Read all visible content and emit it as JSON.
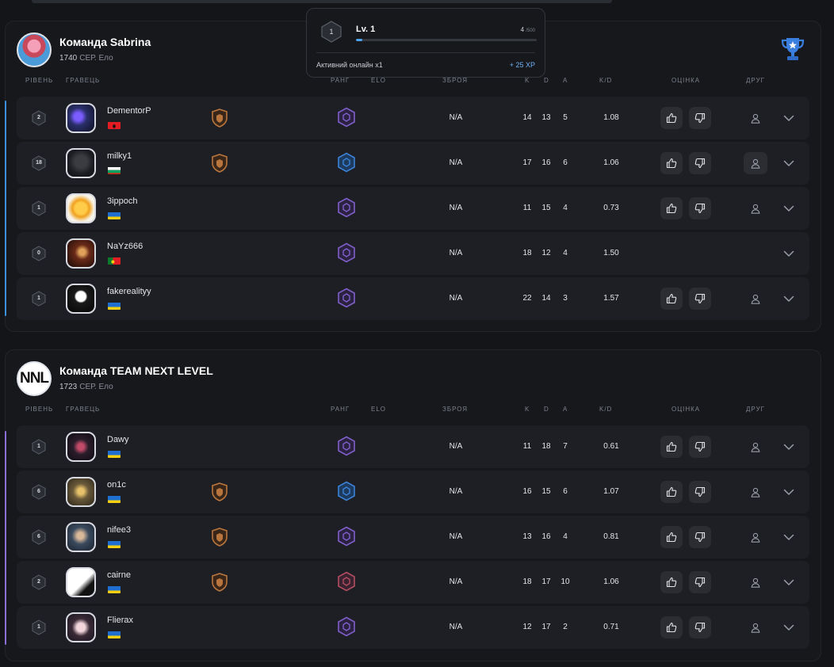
{
  "popup": {
    "level_badge": "1",
    "level_label": "Lv. 1",
    "xp_current": "4",
    "xp_max": "/500",
    "xp_progress": 0.01,
    "activity_label": "Активний онлайн x1",
    "reward_label": "+ 25 XP"
  },
  "columns": {
    "level": "РІВЕНЬ",
    "player": "ГРАВЕЦЬ",
    "rank": "РАНГ",
    "elo": "ELO",
    "weapon": "ЗБРОЯ",
    "k": "K",
    "d": "D",
    "a": "A",
    "kd": "K/D",
    "rating": "ОЦІНКА",
    "friend": "ДРУГ"
  },
  "teams": [
    {
      "name": "Команда Sabrina",
      "elo_value": "1740",
      "elo_label": "СЕР. Ело",
      "players": [
        {
          "level": "2",
          "nick": "DementorP",
          "weapon": "N/A",
          "k": "14",
          "d": "13",
          "a": "5",
          "kd": "1.08"
        },
        {
          "level": "18",
          "nick": "milky1",
          "weapon": "N/A",
          "k": "17",
          "d": "16",
          "a": "6",
          "kd": "1.06"
        },
        {
          "level": "1",
          "nick": "3ippoch",
          "weapon": "N/A",
          "k": "11",
          "d": "15",
          "a": "4",
          "kd": "0.73"
        },
        {
          "level": "0",
          "nick": "NaYz666",
          "weapon": "N/A",
          "k": "18",
          "d": "12",
          "a": "4",
          "kd": "1.50"
        },
        {
          "level": "1",
          "nick": "fakerealityy",
          "weapon": "N/A",
          "k": "22",
          "d": "14",
          "a": "3",
          "kd": "1.57"
        }
      ]
    },
    {
      "name": "Команда TEAM NEXT LEVEL",
      "elo_value": "1723",
      "elo_label": "СЕР. Ело",
      "players": [
        {
          "level": "1",
          "nick": "Dawy",
          "weapon": "N/A",
          "k": "11",
          "d": "18",
          "a": "7",
          "kd": "0.61"
        },
        {
          "level": "6",
          "nick": "on1c",
          "weapon": "N/A",
          "k": "16",
          "d": "15",
          "a": "6",
          "kd": "1.07"
        },
        {
          "level": "6",
          "nick": "nifee3",
          "weapon": "N/A",
          "k": "13",
          "d": "16",
          "a": "4",
          "kd": "0.81"
        },
        {
          "level": "2",
          "nick": "cairne",
          "weapon": "N/A",
          "k": "18",
          "d": "17",
          "a": "10",
          "kd": "1.06"
        },
        {
          "level": "1",
          "nick": "Flierax",
          "weapon": "N/A",
          "k": "12",
          "d": "17",
          "a": "2",
          "kd": "0.71"
        }
      ]
    }
  ],
  "icons": {
    "level": "hexagon-icon",
    "rank": "rank-hexagon-icon",
    "badge": "shield-badge-icon",
    "like": "thumbs-up-icon",
    "dislike": "thumbs-down-icon",
    "friend": "user-icon",
    "expand": "chevron-down-icon",
    "trophy": "trophy-icon"
  },
  "colors": {
    "accent_blue": "#4da3f0",
    "team_a_line": "#3d8fe0",
    "team_b_line": "#8a6fd6",
    "rank_purple": "#7f5fc9",
    "rank_blue": "#3b82d6",
    "rank_red": "#b24e60",
    "badge_bronze": "#b8763e"
  }
}
